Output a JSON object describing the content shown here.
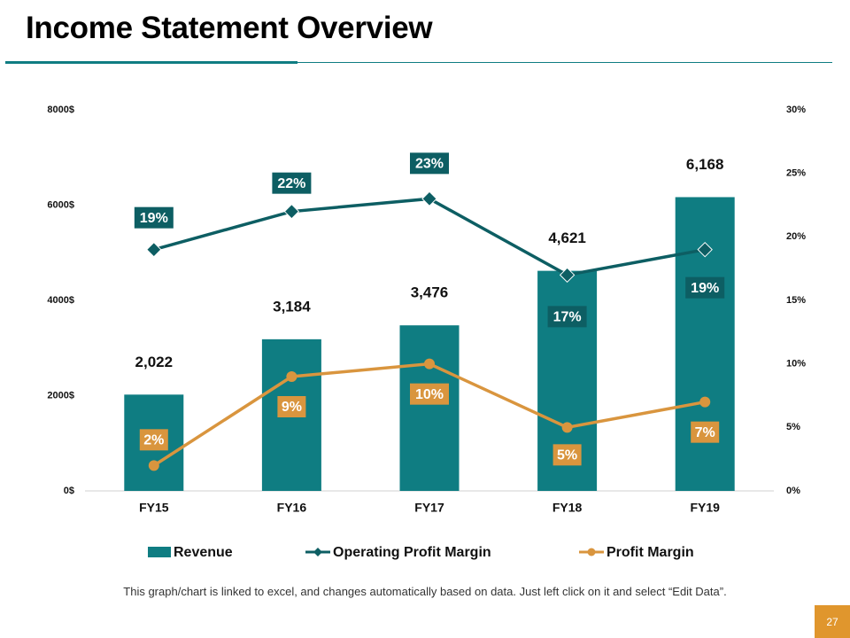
{
  "page": {
    "title": "Income Statement Overview",
    "footnote": "This graph/chart is linked to excel, and changes automatically based on data. Just left click on it and select “Edit Data”.",
    "page_number": "27"
  },
  "colors": {
    "teal": "#0f7d82",
    "dark_teal": "#0d5e63",
    "orange": "#d9953e",
    "badge": "#e0962d"
  },
  "chart_data": {
    "type": "bar",
    "title": "",
    "categories": [
      "FY15",
      "FY16",
      "FY17",
      "FY18",
      "FY19"
    ],
    "y_left": {
      "ylim": [
        0,
        8000
      ],
      "ticks": [
        0,
        2000,
        4000,
        6000,
        8000
      ],
      "tick_labels": [
        "0$",
        "2000$",
        "4000$",
        "6000$",
        "8000$"
      ]
    },
    "y_right": {
      "ylim": [
        0,
        30
      ],
      "ticks": [
        0,
        5,
        10,
        15,
        20,
        25,
        30
      ],
      "tick_labels": [
        "0%",
        "5%",
        "10%",
        "15%",
        "20%",
        "25%",
        "30%"
      ]
    },
    "series": [
      {
        "name": "Revenue",
        "type": "bar",
        "axis": "left",
        "color": "#0f7d82",
        "values": [
          2022,
          3184,
          3476,
          4621,
          6168
        ],
        "labels": [
          "2,022",
          "3,184",
          "3,476",
          "4,621",
          "6,168"
        ]
      },
      {
        "name": "Operating Profit Margin",
        "type": "line",
        "axis": "right",
        "color": "#0d5e63",
        "marker": "diamond",
        "values": [
          19,
          22,
          23,
          17,
          19
        ],
        "labels": [
          "19%",
          "22%",
          "23%",
          "17%",
          "19%"
        ]
      },
      {
        "name": "Profit Margin",
        "type": "line",
        "axis": "right",
        "color": "#d9953e",
        "marker": "circle",
        "values": [
          2,
          9,
          10,
          5,
          7
        ],
        "labels": [
          "2%",
          "9%",
          "10%",
          "5%",
          "7%"
        ]
      }
    ],
    "legend": [
      "Revenue",
      "Operating Profit Margin",
      "Profit Margin"
    ],
    "legend_position": "bottom",
    "grid": false
  }
}
